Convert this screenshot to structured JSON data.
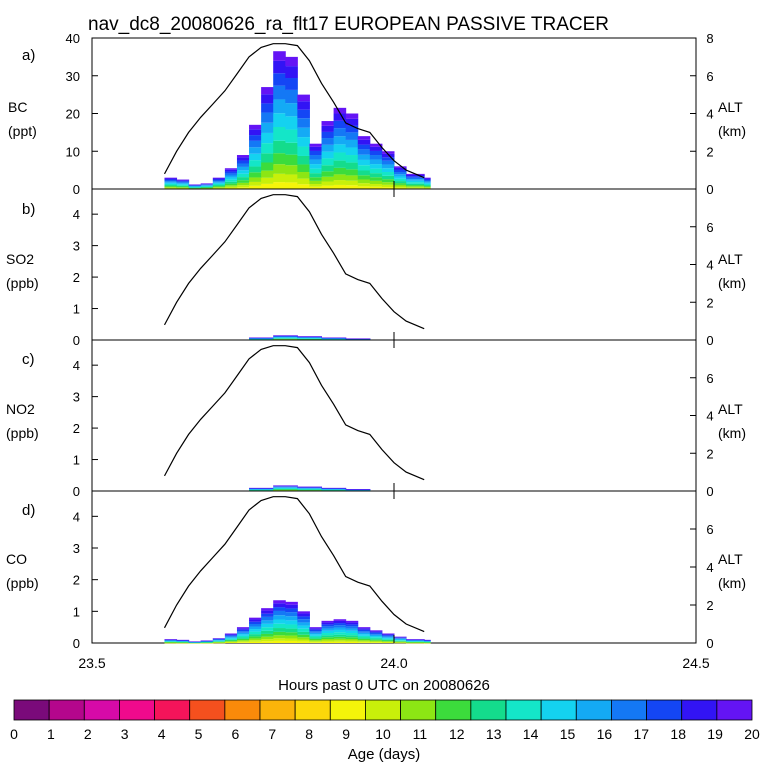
{
  "title": "nav_dc8_20080626_ra_flt17 EUROPEAN PASSIVE TRACER",
  "xlabel": "Hours past 0 UTC on 20080626",
  "x_ticks": [
    "23.5",
    "24.0",
    "24.5"
  ],
  "colorbar": {
    "label": "Age (days)",
    "ticks": [
      "0",
      "1",
      "2",
      "3",
      "4",
      "5",
      "6",
      "7",
      "8",
      "9",
      "10",
      "11",
      "12",
      "13",
      "14",
      "15",
      "16",
      "17",
      "18",
      "19",
      "20"
    ],
    "colors": [
      "#7a0a7a",
      "#b4068c",
      "#d60aa8",
      "#f00a8c",
      "#f5145a",
      "#f5501e",
      "#f98a0a",
      "#fbb40a",
      "#fcd80a",
      "#f5f50a",
      "#c8f00a",
      "#8ce614",
      "#3cdc3c",
      "#14dc8c",
      "#14e6c8",
      "#14d2f0",
      "#14aaf5",
      "#1478f5",
      "#1446f5",
      "#3214f5",
      "#6414f5"
    ]
  },
  "chart_data": [
    {
      "type": "area",
      "panel": "a)",
      "ylabel_top": "BC",
      "ylabel_unit": "(ppt)",
      "y_ticks": [
        "0",
        "10",
        "20",
        "30",
        "40"
      ],
      "ylim": [
        0,
        40
      ],
      "y2label_top": "ALT",
      "y2label_unit": "(km)",
      "y2_ticks": [
        "0",
        "2",
        "4",
        "6",
        "8"
      ],
      "y2lim": [
        0,
        8
      ],
      "xlim": [
        23.5,
        24.5
      ],
      "total": {
        "x": [
          23.62,
          23.64,
          23.66,
          23.68,
          23.7,
          23.72,
          23.74,
          23.76,
          23.78,
          23.8,
          23.82,
          23.84,
          23.86,
          23.88,
          23.9,
          23.92,
          23.94,
          23.96,
          23.98,
          24.0,
          24.02,
          24.05
        ],
        "y": [
          3,
          2.5,
          1.2,
          1.5,
          3,
          5.5,
          9,
          17,
          27,
          36.5,
          35,
          25,
          12,
          18,
          21.5,
          20,
          14,
          12,
          10,
          6,
          4,
          3
        ]
      },
      "altitude": {
        "x": [
          23.62,
          23.64,
          23.66,
          23.68,
          23.7,
          23.72,
          23.74,
          23.76,
          23.78,
          23.8,
          23.82,
          23.84,
          23.86,
          23.88,
          23.9,
          23.92,
          23.94,
          23.96,
          23.98,
          24.0,
          24.02,
          24.05
        ],
        "y": [
          0.8,
          2.0,
          3.0,
          3.8,
          4.5,
          5.2,
          6.1,
          7.0,
          7.5,
          7.7,
          7.7,
          7.6,
          6.8,
          5.6,
          4.6,
          3.5,
          3.2,
          3.0,
          2.2,
          1.5,
          1.0,
          0.6
        ]
      }
    },
    {
      "type": "area",
      "panel": "b)",
      "ylabel_top": "SO2",
      "ylabel_unit": "(ppb)",
      "y_ticks": [
        "0",
        "1",
        "2",
        "3",
        "4"
      ],
      "ylim": [
        0,
        4.8
      ],
      "y2label_top": "ALT",
      "y2label_unit": "(km)",
      "y2_ticks": [
        "0",
        "2",
        "4",
        "6"
      ],
      "y2lim": [
        0,
        8
      ],
      "xlim": [
        23.5,
        24.5
      ],
      "total": {
        "x": [
          23.72,
          23.76,
          23.8,
          23.84,
          23.88,
          23.92,
          23.96
        ],
        "y": [
          0.0,
          0.08,
          0.15,
          0.12,
          0.08,
          0.05,
          0.0
        ]
      },
      "altitude": {
        "x": [
          23.62,
          23.64,
          23.66,
          23.68,
          23.7,
          23.72,
          23.74,
          23.76,
          23.78,
          23.8,
          23.82,
          23.84,
          23.86,
          23.88,
          23.9,
          23.92,
          23.94,
          23.96,
          23.98,
          24.0,
          24.02,
          24.05
        ],
        "y": [
          0.8,
          2.0,
          3.0,
          3.8,
          4.5,
          5.2,
          6.1,
          7.0,
          7.5,
          7.7,
          7.7,
          7.6,
          6.8,
          5.6,
          4.6,
          3.5,
          3.2,
          3.0,
          2.2,
          1.5,
          1.0,
          0.6
        ]
      }
    },
    {
      "type": "area",
      "panel": "c)",
      "ylabel_top": "NO2",
      "ylabel_unit": "(ppb)",
      "y_ticks": [
        "0",
        "1",
        "2",
        "3",
        "4"
      ],
      "ylim": [
        0,
        4.8
      ],
      "y2label_top": "ALT",
      "y2label_unit": "(km)",
      "y2_ticks": [
        "0",
        "2",
        "4",
        "6"
      ],
      "y2lim": [
        0,
        8
      ],
      "xlim": [
        23.5,
        24.5
      ],
      "total": {
        "x": [
          23.72,
          23.76,
          23.8,
          23.84,
          23.88,
          23.92,
          23.96
        ],
        "y": [
          0.0,
          0.1,
          0.18,
          0.14,
          0.1,
          0.06,
          0.0
        ]
      },
      "altitude": {
        "x": [
          23.62,
          23.64,
          23.66,
          23.68,
          23.7,
          23.72,
          23.74,
          23.76,
          23.78,
          23.8,
          23.82,
          23.84,
          23.86,
          23.88,
          23.9,
          23.92,
          23.94,
          23.96,
          23.98,
          24.0,
          24.02,
          24.05
        ],
        "y": [
          0.8,
          2.0,
          3.0,
          3.8,
          4.5,
          5.2,
          6.1,
          7.0,
          7.5,
          7.7,
          7.7,
          7.6,
          6.8,
          5.6,
          4.6,
          3.5,
          3.2,
          3.0,
          2.2,
          1.5,
          1.0,
          0.6
        ]
      }
    },
    {
      "type": "area",
      "panel": "d)",
      "ylabel_top": "CO",
      "ylabel_unit": "(ppb)",
      "y_ticks": [
        "0",
        "1",
        "2",
        "3",
        "4"
      ],
      "ylim": [
        0,
        4.8
      ],
      "y2label_top": "ALT",
      "y2label_unit": "(km)",
      "y2_ticks": [
        "0",
        "2",
        "4",
        "6"
      ],
      "y2lim": [
        0,
        8
      ],
      "xlim": [
        23.5,
        24.5
      ],
      "total": {
        "x": [
          23.62,
          23.64,
          23.66,
          23.68,
          23.7,
          23.72,
          23.74,
          23.76,
          23.78,
          23.8,
          23.82,
          23.84,
          23.86,
          23.88,
          23.9,
          23.92,
          23.94,
          23.96,
          23.98,
          24.0,
          24.02,
          24.05
        ],
        "y": [
          0.12,
          0.1,
          0.05,
          0.08,
          0.15,
          0.3,
          0.5,
          0.8,
          1.1,
          1.35,
          1.3,
          1.0,
          0.5,
          0.7,
          0.75,
          0.7,
          0.5,
          0.4,
          0.3,
          0.2,
          0.12,
          0.1
        ]
      },
      "altitude": {
        "x": [
          23.62,
          23.64,
          23.66,
          23.68,
          23.7,
          23.72,
          23.74,
          23.76,
          23.78,
          23.8,
          23.82,
          23.84,
          23.86,
          23.88,
          23.9,
          23.92,
          23.94,
          23.96,
          23.98,
          24.0,
          24.02,
          24.05
        ],
        "y": [
          0.8,
          2.0,
          3.0,
          3.8,
          4.5,
          5.2,
          6.1,
          7.0,
          7.5,
          7.7,
          7.7,
          7.6,
          6.8,
          5.6,
          4.6,
          3.5,
          3.2,
          3.0,
          2.2,
          1.5,
          1.0,
          0.6
        ]
      }
    }
  ]
}
